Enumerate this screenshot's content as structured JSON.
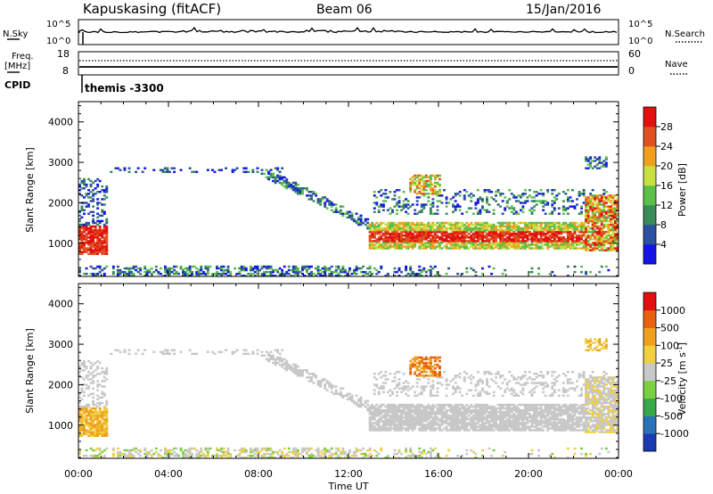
{
  "header": {
    "station": "Kapuskasing (fitACF)",
    "beam": "Beam 06",
    "date": "15/Jan/2016"
  },
  "nsky_panel": {
    "left_label": "N.Sky",
    "left_ticks": [
      "10^5",
      "10^0"
    ],
    "right_ticks": [
      "10^5",
      "10^0"
    ],
    "right_label": "N.Search"
  },
  "freq_panel": {
    "left_label_1": "Freq.",
    "left_label_2": "[MHz]",
    "left_ticks": [
      "18",
      "8"
    ],
    "right_ticks": [
      "60",
      "0"
    ],
    "right_label": "Nave",
    "cpid_label": "CPID",
    "cpid_value": "themis -3300"
  },
  "chart_data": [
    {
      "type": "heatmap",
      "ylabel": "Slant Range [km]",
      "xlabel": "Time UT",
      "ylim": [
        180,
        4500
      ],
      "xlim": [
        0,
        24
      ],
      "y_ticks": [
        "1000",
        "2000",
        "3000",
        "4000"
      ],
      "x_ticks": [
        "00:00",
        "04:00",
        "08:00",
        "12:00",
        "16:00",
        "20:00",
        "00:00"
      ],
      "colorbar_label": "Power [dB]",
      "colorbar_ticks": [
        "4",
        "8",
        "12",
        "16",
        "20",
        "24",
        "28"
      ],
      "colorbar_colors": [
        "#1414e6",
        "#2a50a0",
        "#3a8a5a",
        "#5ac04a",
        "#c8e040",
        "#f0a020",
        "#e05020",
        "#e01010"
      ]
    },
    {
      "type": "heatmap",
      "ylabel": "Slant Range [km]",
      "xlabel": "Time UT",
      "ylim": [
        180,
        4500
      ],
      "xlim": [
        0,
        24
      ],
      "y_ticks": [
        "1000",
        "2000",
        "3000",
        "4000"
      ],
      "x_ticks": [
        "00:00",
        "04:00",
        "08:00",
        "12:00",
        "16:00",
        "20:00",
        "00:00"
      ],
      "colorbar_label": "Velocity [m s^-1]",
      "colorbar_ticks": [
        "1000",
        "500",
        "100",
        "25",
        "-25",
        "-100",
        "-500",
        "-1000"
      ],
      "colorbar_colors": [
        "#1a3ab0",
        "#2a72b8",
        "#3aa84a",
        "#7ad040",
        "#c8c8c8",
        "#f0d040",
        "#f0a020",
        "#e86010",
        "#e01010"
      ]
    }
  ],
  "axis_title": "Time UT"
}
